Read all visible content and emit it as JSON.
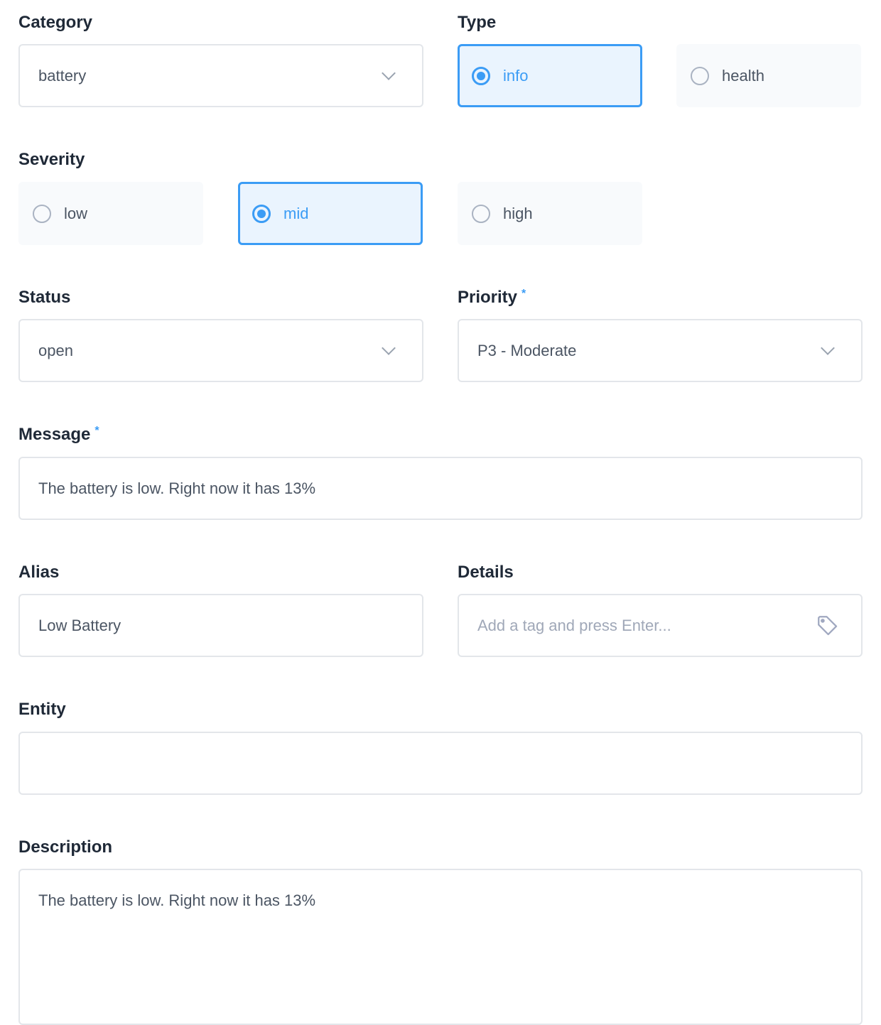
{
  "category": {
    "label": "Category",
    "value": "battery"
  },
  "type": {
    "label": "Type",
    "options": [
      "info",
      "health"
    ],
    "selected": "info"
  },
  "severity": {
    "label": "Severity",
    "options": [
      "low",
      "mid",
      "high"
    ],
    "selected": "mid"
  },
  "status": {
    "label": "Status",
    "value": "open"
  },
  "priority": {
    "label": "Priority",
    "required": "*",
    "value": "P3 - Moderate"
  },
  "message": {
    "label": "Message",
    "required": "*",
    "value": "The battery is low. Right now it has 13%"
  },
  "alias": {
    "label": "Alias",
    "value": "Low Battery"
  },
  "details": {
    "label": "Details",
    "placeholder": "Add a tag and press Enter..."
  },
  "entity": {
    "label": "Entity",
    "value": ""
  },
  "description": {
    "label": "Description",
    "value": "The battery is low. Right now it has 13%"
  },
  "colors": {
    "accent": "#3b9cf5"
  }
}
